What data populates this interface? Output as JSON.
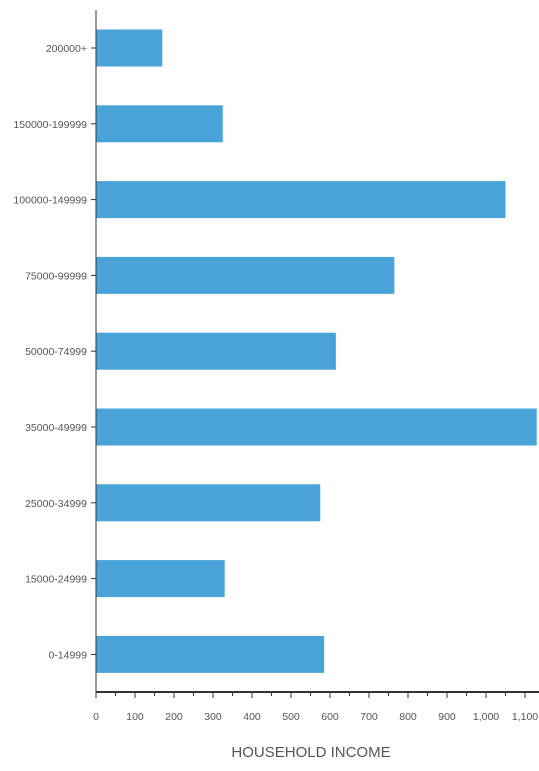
{
  "chart_data": {
    "type": "bar",
    "orientation": "horizontal",
    "categories": [
      "200000+",
      "150000-199999",
      "100000-149999",
      "75000-99999",
      "50000-74999",
      "35000-49999",
      "25000-34999",
      "15000-24999",
      "0-14999"
    ],
    "values": [
      170,
      325,
      1050,
      765,
      615,
      1130,
      575,
      330,
      585
    ],
    "xlabel": "HOUSEHOLD INCOME",
    "ylabel": "",
    "xlim": [
      0,
      1100
    ],
    "x_ticks": [
      "0",
      "100",
      "200",
      "300",
      "400",
      "500",
      "600",
      "700",
      "800",
      "900",
      "1,000",
      "1,100"
    ],
    "grid": false,
    "colors": {
      "bar": "#4aa3d8",
      "axis": "#333333",
      "text": "#555555"
    }
  }
}
